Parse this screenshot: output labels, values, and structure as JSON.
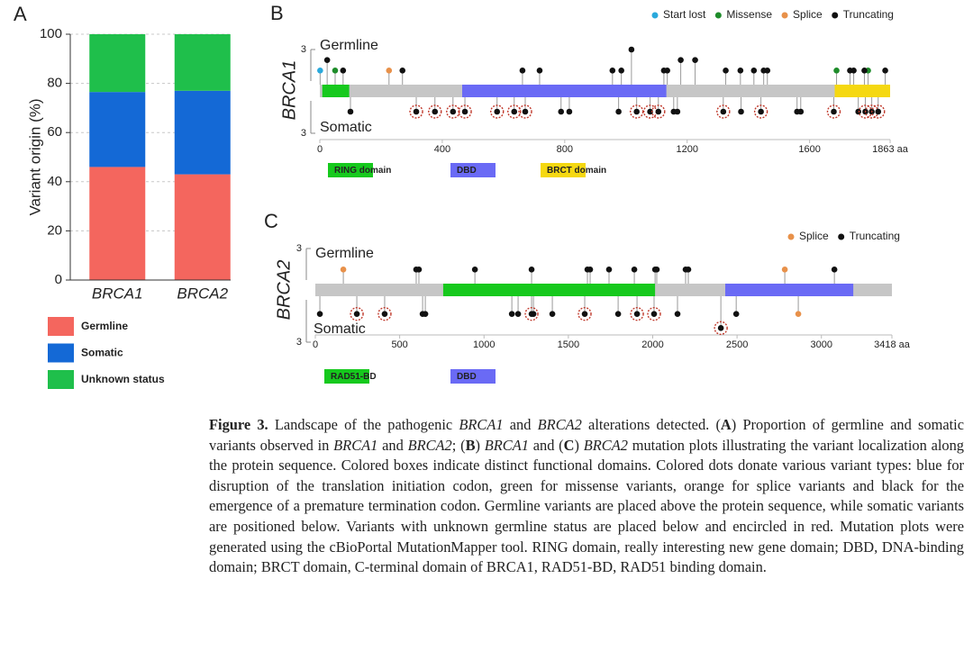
{
  "chart_data": [
    {
      "type": "bar",
      "panel": "A",
      "stacked": true,
      "ylabel": "Variant origin (%)",
      "categories": [
        "BRCA1",
        "BRCA2"
      ],
      "series": [
        {
          "name": "Germline",
          "color": "#f4665e",
          "values": [
            46,
            43
          ]
        },
        {
          "name": "Somatic",
          "color": "#1469d6",
          "values": [
            30.5,
            34
          ]
        },
        {
          "name": "Unknown status",
          "color": "#1fbf4b",
          "values": [
            23.5,
            23
          ]
        }
      ],
      "ylim": [
        0,
        100
      ],
      "yticks": [
        0,
        20,
        40,
        60,
        80,
        100
      ],
      "grid": true
    },
    {
      "type": "lollipop",
      "panel": "B",
      "gene": "BRCA1",
      "germline": {
        "label": "Germline",
        "ylim": [
          0,
          3
        ],
        "yticks": [
          3
        ]
      },
      "somatic": {
        "label": "Somatic",
        "ylim": [
          0,
          3
        ],
        "yticks": [
          3
        ]
      },
      "xlim": [
        0,
        1863
      ],
      "xticks": [
        0,
        400,
        800,
        1200,
        1600,
        {
          "value": 1863,
          "label": "1863 aa"
        }
      ],
      "domains": [
        {
          "name": "RING domain",
          "color": "#16c91d",
          "start": 8,
          "end": 96
        },
        {
          "name": "DBD",
          "color": "#6a6af5",
          "start": 465,
          "end": 1132
        },
        {
          "name": "BRCT domain",
          "color": "#f5d811",
          "start": 1682,
          "end": 1863
        }
      ],
      "series": [
        {
          "name": "Start lost",
          "color": "#2aa9dc",
          "germline_x": [
            1
          ],
          "germline_counts": [
            1
          ]
        },
        {
          "name": "Missense",
          "color": "#1e8c2a",
          "germline_x": [
            50,
            1688,
            1791
          ],
          "germline_counts": [
            1,
            1,
            1
          ]
        },
        {
          "name": "Splice",
          "color": "#e8914a",
          "germline_x": [
            226
          ],
          "germline_counts": [
            1
          ]
        },
        {
          "name": "Truncating",
          "color": "#111111",
          "germline_x": [
            24,
            76,
            270,
            662,
            718,
            956,
            985,
            1018,
            1124,
            1135,
            1179,
            1226,
            1326,
            1374,
            1418,
            1450,
            1462,
            1732,
            1744,
            1779,
            1847
          ],
          "germline_counts": [
            2,
            1,
            1,
            1,
            1,
            1,
            1,
            3,
            1,
            1,
            2,
            2,
            1,
            1,
            1,
            1,
            1,
            1,
            1,
            1,
            1
          ],
          "somatic_x": [
            100,
            788,
            815,
            976,
            1156,
            1168,
            1376,
            1559,
            1571,
            1759
          ],
          "somatic_counts": [
            1,
            1,
            1,
            1,
            1,
            1,
            1,
            1,
            1,
            1
          ],
          "unknown_x": [
            315,
            376,
            435,
            474,
            579,
            635,
            671,
            1035,
            1079,
            1106,
            1318,
            1441,
            1679,
            1782,
            1803,
            1824
          ],
          "unknown_counts": [
            1,
            1,
            1,
            1,
            1,
            1,
            1,
            1,
            1,
            1,
            1,
            1,
            1,
            1,
            1,
            1
          ]
        }
      ]
    },
    {
      "type": "lollipop",
      "panel": "C",
      "gene": "BRCA2",
      "germline": {
        "label": "Germline",
        "ylim": [
          0,
          3
        ],
        "yticks": [
          3
        ]
      },
      "somatic": {
        "label": "Somatic",
        "ylim": [
          0,
          3
        ],
        "yticks": [
          3
        ]
      },
      "xlim": [
        0,
        3418
      ],
      "xticks": [
        0,
        500,
        1000,
        1500,
        2000,
        2500,
        3000,
        {
          "value": 3418,
          "label": "3418 aa"
        }
      ],
      "domains": [
        {
          "name": "RAD51-BD",
          "color": "#16c91d",
          "start": 758,
          "end": 2014
        },
        {
          "name": "DBD",
          "color": "#6a6af5",
          "start": 2430,
          "end": 3189
        }
      ],
      "series": [
        {
          "name": "Splice",
          "color": "#e8914a",
          "germline_x": [
            166,
            2783
          ],
          "germline_counts": [
            1,
            1
          ],
          "somatic_x": [
            2863
          ],
          "somatic_counts": [
            1
          ]
        },
        {
          "name": "Truncating",
          "color": "#111111",
          "germline_x": [
            598,
            614,
            946,
            1282,
            1613,
            1629,
            1741,
            1891,
            2014,
            2024,
            2195,
            2211,
            3077
          ],
          "germline_counts": [
            1,
            1,
            1,
            1,
            1,
            1,
            1,
            1,
            1,
            1,
            1,
            1,
            1
          ],
          "somatic_x": [
            27,
            636,
            652,
            1165,
            1202,
            1293,
            1405,
            1795,
            2147,
            2495
          ],
          "somatic_counts": [
            1,
            1,
            1,
            1,
            1,
            1,
            1,
            1,
            1,
            1
          ],
          "unknown_x": [
            246,
            411,
            1282,
            1597,
            1907,
            2008,
            2404
          ],
          "unknown_counts": [
            1,
            1,
            1,
            1,
            1,
            1,
            2
          ]
        }
      ]
    }
  ],
  "caption": {
    "runs": [
      {
        "text": "Figure 3.",
        "style": "bold"
      },
      {
        "text": " Landscape of the pathogenic ",
        "style": "plain"
      },
      {
        "text": "BRCA1",
        "style": "italic"
      },
      {
        "text": " and ",
        "style": "plain"
      },
      {
        "text": "BRCA2",
        "style": "italic"
      },
      {
        "text": " alterations detected. (",
        "style": "plain"
      },
      {
        "text": "A",
        "style": "bold"
      },
      {
        "text": ") Proportion of germline and somatic variants observed in ",
        "style": "plain"
      },
      {
        "text": "BRCA1",
        "style": "italic"
      },
      {
        "text": " and ",
        "style": "plain"
      },
      {
        "text": "BRCA2",
        "style": "italic"
      },
      {
        "text": "; (",
        "style": "plain"
      },
      {
        "text": "B",
        "style": "bold"
      },
      {
        "text": ") ",
        "style": "plain"
      },
      {
        "text": "BRCA1",
        "style": "italic"
      },
      {
        "text": " and (",
        "style": "plain"
      },
      {
        "text": "C",
        "style": "bold"
      },
      {
        "text": ") ",
        "style": "plain"
      },
      {
        "text": "BRCA2",
        "style": "italic"
      },
      {
        "text": " mutation plots illustrating the variant localization along the protein sequence. Colored boxes indicate distinct functional domains. Colored dots donate various variant types: blue for disruption of the translation initiation codon, green for missense variants, orange for splice variants and black for the emergence of a premature termination codon. Germline variants are placed above the protein sequence, while somatic variants are positioned below. Variants with unknown germline status are placed below and encircled in red. Mutation plots were generated using the cBioPortal MutationMapper tool. RING domain, really interesting new gene domain; DBD, DNA-binding domain; BRCT domain, C-terminal domain of BRCA1, RAD51-BD, RAD51 binding domain.",
        "style": "plain"
      }
    ]
  }
}
